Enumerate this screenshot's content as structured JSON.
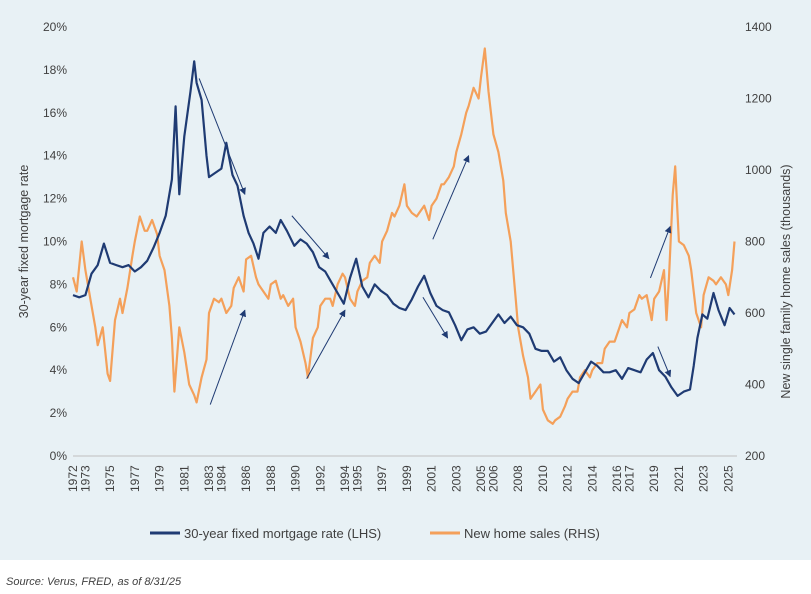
{
  "chart_data": {
    "type": "line",
    "background_color": "#e8f1f5",
    "colors": {
      "mortgage": "#1f3b73",
      "home_sales": "#f4a05a",
      "arrows": "#1f3b73"
    },
    "x_ticks": [
      "1972",
      "1973",
      "1975",
      "1977",
      "1979",
      "1981",
      "1983",
      "1984",
      "1986",
      "1988",
      "1990",
      "1992",
      "1994",
      "1995",
      "1997",
      "1999",
      "2001",
      "2003",
      "2005",
      "2006",
      "2008",
      "2010",
      "2012",
      "2014",
      "2016",
      "2017",
      "2019",
      "2021",
      "2023",
      "2025"
    ],
    "xlim": [
      1972,
      2025.7
    ],
    "y_left": {
      "label": "30-year fixed mortgage rate",
      "ticks": [
        "0%",
        "2%",
        "4%",
        "6%",
        "8%",
        "10%",
        "12%",
        "14%",
        "16%",
        "18%",
        "20%"
      ],
      "range": [
        0,
        20
      ]
    },
    "y_right": {
      "label": "New single family home sales (thousands)",
      "ticks": [
        "200",
        "400",
        "600",
        "800",
        "1000",
        "1200",
        "1400"
      ],
      "range": [
        200,
        1400
      ]
    },
    "series": [
      {
        "name": "30-year fixed mortgage rate (LHS)",
        "axis": "left",
        "points": [
          [
            1972,
            7.5
          ],
          [
            1972.5,
            7.4
          ],
          [
            1973,
            7.5
          ],
          [
            1973.5,
            8.5
          ],
          [
            1974,
            8.9
          ],
          [
            1974.5,
            9.9
          ],
          [
            1975,
            9.0
          ],
          [
            1975.5,
            8.9
          ],
          [
            1976,
            8.8
          ],
          [
            1976.5,
            8.9
          ],
          [
            1977,
            8.6
          ],
          [
            1977.5,
            8.8
          ],
          [
            1978,
            9.1
          ],
          [
            1978.5,
            9.7
          ],
          [
            1979,
            10.4
          ],
          [
            1979.5,
            11.2
          ],
          [
            1980,
            12.9
          ],
          [
            1980.3,
            16.3
          ],
          [
            1980.6,
            12.2
          ],
          [
            1981,
            14.9
          ],
          [
            1981.5,
            17.0
          ],
          [
            1981.8,
            18.4
          ],
          [
            1982,
            17.4
          ],
          [
            1982.4,
            16.6
          ],
          [
            1982.8,
            14.0
          ],
          [
            1983,
            13.0
          ],
          [
            1983.5,
            13.2
          ],
          [
            1984,
            13.4
          ],
          [
            1984.4,
            14.6
          ],
          [
            1984.9,
            13.1
          ],
          [
            1985.3,
            12.6
          ],
          [
            1985.8,
            11.2
          ],
          [
            1986.2,
            10.4
          ],
          [
            1986.6,
            9.9
          ],
          [
            1987,
            9.2
          ],
          [
            1987.4,
            10.4
          ],
          [
            1987.9,
            10.7
          ],
          [
            1988.4,
            10.4
          ],
          [
            1988.8,
            11.0
          ],
          [
            1989.3,
            10.5
          ],
          [
            1989.9,
            9.8
          ],
          [
            1990.4,
            10.1
          ],
          [
            1990.9,
            9.9
          ],
          [
            1991.4,
            9.5
          ],
          [
            1991.9,
            8.8
          ],
          [
            1992.4,
            8.6
          ],
          [
            1992.9,
            8.1
          ],
          [
            1993.4,
            7.6
          ],
          [
            1993.9,
            7.1
          ],
          [
            1994.4,
            8.3
          ],
          [
            1994.9,
            9.2
          ],
          [
            1995.4,
            7.9
          ],
          [
            1995.9,
            7.4
          ],
          [
            1996.4,
            8.0
          ],
          [
            1996.9,
            7.7
          ],
          [
            1997.4,
            7.5
          ],
          [
            1997.9,
            7.1
          ],
          [
            1998.4,
            6.9
          ],
          [
            1998.9,
            6.8
          ],
          [
            1999.4,
            7.3
          ],
          [
            1999.9,
            7.9
          ],
          [
            2000.4,
            8.4
          ],
          [
            2000.9,
            7.6
          ],
          [
            2001.4,
            7.0
          ],
          [
            2001.9,
            6.8
          ],
          [
            2002.4,
            6.7
          ],
          [
            2002.9,
            6.1
          ],
          [
            2003.4,
            5.4
          ],
          [
            2003.9,
            5.9
          ],
          [
            2004.4,
            6.0
          ],
          [
            2004.9,
            5.7
          ],
          [
            2005.4,
            5.8
          ],
          [
            2005.9,
            6.2
          ],
          [
            2006.4,
            6.6
          ],
          [
            2006.9,
            6.2
          ],
          [
            2007.4,
            6.5
          ],
          [
            2007.9,
            6.1
          ],
          [
            2008.4,
            6.0
          ],
          [
            2008.9,
            5.7
          ],
          [
            2009.4,
            5.0
          ],
          [
            2009.9,
            4.9
          ],
          [
            2010.4,
            4.9
          ],
          [
            2010.9,
            4.4
          ],
          [
            2011.4,
            4.6
          ],
          [
            2011.9,
            4.0
          ],
          [
            2012.4,
            3.6
          ],
          [
            2012.9,
            3.4
          ],
          [
            2013.4,
            3.9
          ],
          [
            2013.9,
            4.4
          ],
          [
            2014.4,
            4.2
          ],
          [
            2014.9,
            3.9
          ],
          [
            2015.4,
            3.9
          ],
          [
            2015.9,
            4.0
          ],
          [
            2016.4,
            3.6
          ],
          [
            2016.9,
            4.1
          ],
          [
            2017.4,
            4.0
          ],
          [
            2017.9,
            3.9
          ],
          [
            2018.4,
            4.5
          ],
          [
            2018.9,
            4.8
          ],
          [
            2019.4,
            4.0
          ],
          [
            2019.9,
            3.7
          ],
          [
            2020.4,
            3.2
          ],
          [
            2020.9,
            2.8
          ],
          [
            2021.4,
            3.0
          ],
          [
            2021.9,
            3.1
          ],
          [
            2022.2,
            4.2
          ],
          [
            2022.5,
            5.5
          ],
          [
            2022.9,
            6.6
          ],
          [
            2023.3,
            6.4
          ],
          [
            2023.8,
            7.6
          ],
          [
            2024.2,
            6.8
          ],
          [
            2024.7,
            6.1
          ],
          [
            2025.1,
            6.9
          ],
          [
            2025.5,
            6.6
          ]
        ]
      },
      {
        "name": "New home sales (RHS)",
        "axis": "right",
        "points": [
          [
            1972,
            700
          ],
          [
            1972.3,
            660
          ],
          [
            1972.7,
            800
          ],
          [
            1973,
            720
          ],
          [
            1973.4,
            640
          ],
          [
            1973.8,
            560
          ],
          [
            1974,
            510
          ],
          [
            1974.4,
            560
          ],
          [
            1974.8,
            430
          ],
          [
            1975,
            410
          ],
          [
            1975.4,
            580
          ],
          [
            1975.8,
            640
          ],
          [
            1976,
            600
          ],
          [
            1976.4,
            670
          ],
          [
            1976.8,
            760
          ],
          [
            1977,
            800
          ],
          [
            1977.4,
            870
          ],
          [
            1977.8,
            830
          ],
          [
            1978,
            830
          ],
          [
            1978.4,
            860
          ],
          [
            1978.8,
            820
          ],
          [
            1979,
            760
          ],
          [
            1979.4,
            720
          ],
          [
            1979.8,
            620
          ],
          [
            1980,
            530
          ],
          [
            1980.2,
            380
          ],
          [
            1980.6,
            560
          ],
          [
            1981,
            490
          ],
          [
            1981.4,
            400
          ],
          [
            1981.8,
            370
          ],
          [
            1982,
            350
          ],
          [
            1982.4,
            420
          ],
          [
            1982.8,
            470
          ],
          [
            1983,
            600
          ],
          [
            1983.4,
            640
          ],
          [
            1983.8,
            630
          ],
          [
            1984,
            640
          ],
          [
            1984.4,
            600
          ],
          [
            1984.8,
            620
          ],
          [
            1985,
            670
          ],
          [
            1985.4,
            700
          ],
          [
            1985.8,
            660
          ],
          [
            1986,
            750
          ],
          [
            1986.4,
            760
          ],
          [
            1986.8,
            700
          ],
          [
            1987,
            680
          ],
          [
            1987.4,
            660
          ],
          [
            1987.8,
            640
          ],
          [
            1988,
            680
          ],
          [
            1988.4,
            690
          ],
          [
            1988.8,
            640
          ],
          [
            1989,
            650
          ],
          [
            1989.4,
            620
          ],
          [
            1989.8,
            640
          ],
          [
            1990,
            560
          ],
          [
            1990.4,
            520
          ],
          [
            1990.8,
            460
          ],
          [
            1991,
            420
          ],
          [
            1991.4,
            530
          ],
          [
            1991.8,
            560
          ],
          [
            1992,
            620
          ],
          [
            1992.4,
            640
          ],
          [
            1992.8,
            640
          ],
          [
            1993,
            620
          ],
          [
            1993.4,
            680
          ],
          [
            1993.8,
            710
          ],
          [
            1994,
            700
          ],
          [
            1994.4,
            640
          ],
          [
            1994.8,
            620
          ],
          [
            1995,
            660
          ],
          [
            1995.4,
            690
          ],
          [
            1995.8,
            700
          ],
          [
            1996,
            740
          ],
          [
            1996.4,
            760
          ],
          [
            1996.8,
            740
          ],
          [
            1997,
            800
          ],
          [
            1997.4,
            830
          ],
          [
            1997.8,
            880
          ],
          [
            1998,
            870
          ],
          [
            1998.4,
            900
          ],
          [
            1998.8,
            960
          ],
          [
            1999,
            900
          ],
          [
            1999.4,
            880
          ],
          [
            1999.8,
            870
          ],
          [
            2000,
            880
          ],
          [
            2000.4,
            900
          ],
          [
            2000.8,
            860
          ],
          [
            2001,
            900
          ],
          [
            2001.4,
            920
          ],
          [
            2001.8,
            960
          ],
          [
            2002,
            960
          ],
          [
            2002.4,
            980
          ],
          [
            2002.8,
            1010
          ],
          [
            2003,
            1050
          ],
          [
            2003.4,
            1100
          ],
          [
            2003.8,
            1160
          ],
          [
            2004,
            1180
          ],
          [
            2004.4,
            1230
          ],
          [
            2004.8,
            1200
          ],
          [
            2005,
            1260
          ],
          [
            2005.3,
            1340
          ],
          [
            2005.6,
            1220
          ],
          [
            2006,
            1100
          ],
          [
            2006.4,
            1050
          ],
          [
            2006.8,
            970
          ],
          [
            2007,
            880
          ],
          [
            2007.4,
            800
          ],
          [
            2007.8,
            640
          ],
          [
            2008,
            560
          ],
          [
            2008.4,
            480
          ],
          [
            2008.8,
            420
          ],
          [
            2009,
            360
          ],
          [
            2009.4,
            380
          ],
          [
            2009.8,
            400
          ],
          [
            2010,
            330
          ],
          [
            2010.4,
            300
          ],
          [
            2010.8,
            290
          ],
          [
            2011,
            300
          ],
          [
            2011.4,
            310
          ],
          [
            2011.8,
            340
          ],
          [
            2012,
            360
          ],
          [
            2012.4,
            380
          ],
          [
            2012.8,
            380
          ],
          [
            2013,
            420
          ],
          [
            2013.4,
            440
          ],
          [
            2013.8,
            420
          ],
          [
            2014,
            440
          ],
          [
            2014.4,
            460
          ],
          [
            2014.8,
            460
          ],
          [
            2015,
            500
          ],
          [
            2015.4,
            520
          ],
          [
            2015.8,
            520
          ],
          [
            2016,
            540
          ],
          [
            2016.4,
            580
          ],
          [
            2016.8,
            560
          ],
          [
            2017,
            600
          ],
          [
            2017.4,
            610
          ],
          [
            2017.8,
            650
          ],
          [
            2018,
            640
          ],
          [
            2018.4,
            650
          ],
          [
            2018.8,
            580
          ],
          [
            2019,
            640
          ],
          [
            2019.4,
            660
          ],
          [
            2019.8,
            720
          ],
          [
            2020,
            580
          ],
          [
            2020.2,
            700
          ],
          [
            2020.5,
            930
          ],
          [
            2020.7,
            1010
          ],
          [
            2021,
            800
          ],
          [
            2021.4,
            790
          ],
          [
            2021.8,
            760
          ],
          [
            2022,
            720
          ],
          [
            2022.4,
            600
          ],
          [
            2022.8,
            560
          ],
          [
            2023,
            650
          ],
          [
            2023.4,
            700
          ],
          [
            2023.8,
            690
          ],
          [
            2024,
            680
          ],
          [
            2024.4,
            700
          ],
          [
            2024.8,
            680
          ],
          [
            2025,
            650
          ],
          [
            2025.3,
            720
          ],
          [
            2025.5,
            800
          ]
        ]
      }
    ],
    "legend": [
      {
        "label": "30-year fixed mortgage rate (LHS)",
        "series": 0
      },
      {
        "label": "New home sales (RHS)",
        "series": 1
      }
    ],
    "legend_position": "bottom",
    "annotations": {
      "arrows": [
        {
          "from": [
            1982.2,
            17.6
          ],
          "to": [
            1985.9,
            12.2
          ]
        },
        {
          "from": [
            1983.1,
            2.4
          ],
          "to": [
            1985.9,
            6.8
          ]
        },
        {
          "from": [
            1989.7,
            11.2
          ],
          "to": [
            1992.7,
            9.2
          ]
        },
        {
          "from": [
            1990.9,
            3.6
          ],
          "to": [
            1994.0,
            6.8
          ]
        },
        {
          "from": [
            2000.3,
            7.4
          ],
          "to": [
            2002.3,
            5.5
          ]
        },
        {
          "from": [
            2001.1,
            10.1
          ],
          "to": [
            2004.0,
            14.0
          ]
        },
        {
          "from": [
            2019.3,
            5.1
          ],
          "to": [
            2020.3,
            3.7
          ]
        },
        {
          "from": [
            2018.7,
            8.3
          ],
          "to": [
            2020.3,
            10.7
          ]
        }
      ]
    },
    "grid": false
  },
  "footer": {
    "source": "Source: Verus, FRED, as of 8/31/25"
  }
}
